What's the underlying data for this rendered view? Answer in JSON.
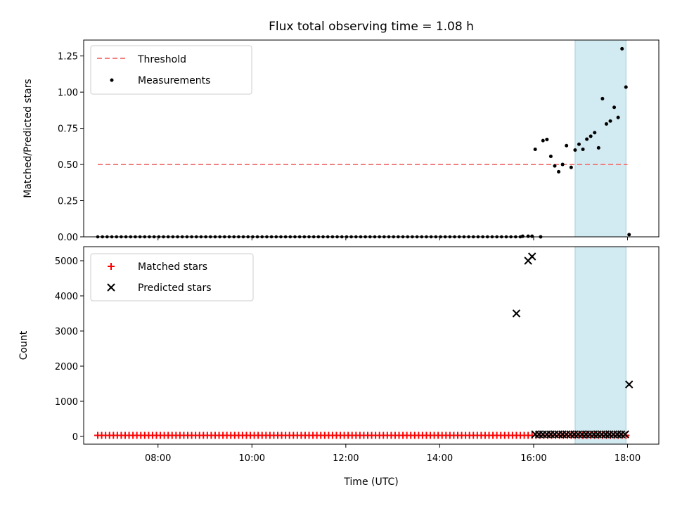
{
  "chart_data": [
    {
      "type": "line+scatter",
      "title": "Flux total observing time = 1.08 h",
      "xlabel": "",
      "ylabel": "Matched/Predicted stars",
      "xlim": [
        "06:25",
        "18:40"
      ],
      "ylim": [
        0,
        1.36
      ],
      "yticks": [
        0,
        0.25,
        0.5,
        0.75,
        1.0,
        1.25
      ],
      "ytick_labels": [
        "0.00",
        "0.25",
        "0.50",
        "0.75",
        "1.00",
        "1.25"
      ],
      "legend_position": "upper-left",
      "shaded_region": {
        "start": "16:53",
        "end": "17:58",
        "color": "#add8e6"
      },
      "threshold": {
        "name": "Threshold",
        "value": 0.5,
        "x_start": "06:43",
        "x_end": "18:00",
        "color": "#f08080",
        "style": "dashed"
      },
      "measurements": {
        "name": "Measurements",
        "color": "#000000",
        "zero_run": {
          "start": "06:43",
          "end": "15:43",
          "step_minutes": 6,
          "value": 0
        },
        "points": [
          {
            "x": "15:46",
            "y": 0.004
          },
          {
            "x": "15:53",
            "y": 0.004
          },
          {
            "x": "15:58",
            "y": 0.004
          },
          {
            "x": "16:02",
            "y": 0.605
          },
          {
            "x": "16:09",
            "y": 0.0
          },
          {
            "x": "16:12",
            "y": 0.665
          },
          {
            "x": "16:17",
            "y": 0.673
          },
          {
            "x": "16:22",
            "y": 0.556
          },
          {
            "x": "16:27",
            "y": 0.49
          },
          {
            "x": "16:32",
            "y": 0.45
          },
          {
            "x": "16:37",
            "y": 0.5
          },
          {
            "x": "16:42",
            "y": 0.63
          },
          {
            "x": "16:48",
            "y": 0.48
          },
          {
            "x": "16:53",
            "y": 0.6
          },
          {
            "x": "16:58",
            "y": 0.64
          },
          {
            "x": "17:03",
            "y": 0.605
          },
          {
            "x": "17:08",
            "y": 0.675
          },
          {
            "x": "17:13",
            "y": 0.695
          },
          {
            "x": "17:18",
            "y": 0.72
          },
          {
            "x": "17:23",
            "y": 0.615
          },
          {
            "x": "17:28",
            "y": 0.955
          },
          {
            "x": "17:33",
            "y": 0.78
          },
          {
            "x": "17:38",
            "y": 0.8
          },
          {
            "x": "17:43",
            "y": 0.895
          },
          {
            "x": "17:48",
            "y": 0.825
          },
          {
            "x": "17:53",
            "y": 1.3
          },
          {
            "x": "17:58",
            "y": 1.035
          },
          {
            "x": "18:02",
            "y": 0.015
          }
        ]
      }
    },
    {
      "type": "scatter",
      "title": "",
      "xlabel": "Time (UTC)",
      "ylabel": "Count",
      "xlim": [
        "06:25",
        "18:40"
      ],
      "ylim": [
        -220,
        5400
      ],
      "yticks": [
        0,
        1000,
        2000,
        3000,
        4000,
        5000
      ],
      "xticks": [
        "08:00",
        "10:00",
        "12:00",
        "14:00",
        "16:00",
        "18:00"
      ],
      "legend_position": "upper-left",
      "shaded_region": {
        "start": "16:53",
        "end": "17:58",
        "color": "#add8e6"
      },
      "series": [
        {
          "name": "Matched stars",
          "marker": "plus",
          "color": "#ff0000",
          "run": {
            "start": "06:43",
            "end": "18:02",
            "step_minutes": 5,
            "value": 30
          }
        },
        {
          "name": "Predicted stars",
          "marker": "x",
          "color": "#000000",
          "run": {
            "start": "16:02",
            "end": "17:58",
            "step_minutes": 5,
            "value": 60
          },
          "points": [
            {
              "x": "15:38",
              "y": 3500
            },
            {
              "x": "15:53",
              "y": 5000
            },
            {
              "x": "15:58",
              "y": 5120
            },
            {
              "x": "18:02",
              "y": 1480
            }
          ]
        }
      ]
    }
  ]
}
